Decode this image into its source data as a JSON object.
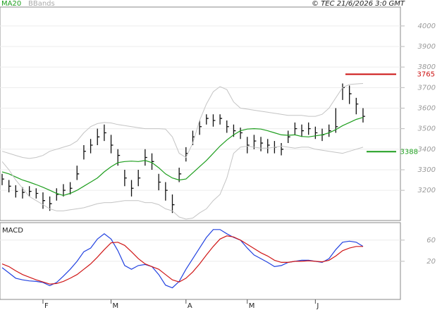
{
  "chart_data": [
    {
      "type": "ohlc",
      "copyright": "© TEC 21/6/2026 3:0 GMT",
      "ylim": [
        3053,
        4092
      ],
      "yticks": [
        3200,
        3300,
        3400,
        3500,
        3600,
        3700,
        3800,
        3900,
        4000
      ],
      "grid": true,
      "bar_color": "#111111",
      "high": [
        3280,
        3250,
        3225,
        3215,
        3220,
        3210,
        3190,
        3170,
        3210,
        3230,
        3240,
        3320,
        3420,
        3450,
        3500,
        3520,
        3470,
        3400,
        3300,
        3250,
        3300,
        3400,
        3380,
        3280,
        3240,
        3180,
        3310,
        3410,
        3490,
        3540,
        3570,
        3570,
        3570,
        3540,
        3520,
        3505,
        3460,
        3470,
        3460,
        3450,
        3440,
        3430,
        3490,
        3530,
        3520,
        3530,
        3510,
        3500,
        3520,
        3600,
        3720,
        3710,
        3650,
        3600
      ],
      "low": [
        3225,
        3190,
        3165,
        3160,
        3170,
        3160,
        3110,
        3100,
        3150,
        3170,
        3180,
        3250,
        3350,
        3380,
        3420,
        3440,
        3380,
        3320,
        3220,
        3170,
        3220,
        3320,
        3300,
        3200,
        3150,
        3090,
        3240,
        3340,
        3420,
        3470,
        3520,
        3510,
        3520,
        3480,
        3460,
        3450,
        3380,
        3400,
        3390,
        3380,
        3380,
        3370,
        3430,
        3470,
        3460,
        3470,
        3450,
        3440,
        3460,
        3480,
        3640,
        3620,
        3570,
        3530
      ],
      "close": [
        3255,
        3220,
        3195,
        3190,
        3195,
        3185,
        3150,
        3135,
        3180,
        3200,
        3210,
        3280,
        3390,
        3420,
        3460,
        3480,
        3420,
        3370,
        3260,
        3210,
        3260,
        3360,
        3340,
        3240,
        3200,
        3130,
        3280,
        3380,
        3460,
        3510,
        3550,
        3540,
        3550,
        3510,
        3490,
        3480,
        3420,
        3440,
        3430,
        3420,
        3410,
        3400,
        3460,
        3500,
        3490,
        3500,
        3480,
        3470,
        3490,
        3510,
        3700,
        3670,
        3620,
        3560
      ],
      "series": [
        {
          "name": "MA20",
          "color": "#1e9e1e",
          "values": [
            3290,
            3280,
            3265,
            3250,
            3240,
            3228,
            3215,
            3200,
            3185,
            3175,
            3185,
            3200,
            3220,
            3240,
            3260,
            3290,
            3315,
            3335,
            3340,
            3342,
            3340,
            3345,
            3335,
            3310,
            3280,
            3260,
            3250,
            3255,
            3285,
            3315,
            3345,
            3380,
            3415,
            3445,
            3470,
            3490,
            3498,
            3500,
            3498,
            3490,
            3480,
            3470,
            3468,
            3470,
            3462,
            3460,
            3465,
            3470,
            3480,
            3495,
            3515,
            3530,
            3545,
            3555
          ]
        },
        {
          "name": "BBands",
          "color": "#c4c4c4",
          "upper": [
            3390,
            3380,
            3370,
            3360,
            3355,
            3360,
            3370,
            3390,
            3400,
            3410,
            3420,
            3440,
            3480,
            3510,
            3525,
            3530,
            3528,
            3520,
            3515,
            3510,
            3505,
            3500,
            3500,
            3500,
            3498,
            3460,
            3380,
            3360,
            3430,
            3540,
            3620,
            3680,
            3705,
            3690,
            3630,
            3600,
            3595,
            3590,
            3585,
            3580,
            3575,
            3570,
            3565,
            3565,
            3565,
            3560,
            3560,
            3570,
            3600,
            3650,
            3700,
            3715,
            3718,
            3720
          ],
          "lower": [
            3340,
            3300,
            3250,
            3210,
            3170,
            3150,
            3130,
            3110,
            3100,
            3100,
            3105,
            3110,
            3115,
            3125,
            3135,
            3140,
            3140,
            3145,
            3150,
            3150,
            3150,
            3140,
            3140,
            3130,
            3110,
            3100,
            3070,
            3060,
            3065,
            3090,
            3110,
            3150,
            3180,
            3260,
            3380,
            3410,
            3415,
            3410,
            3405,
            3405,
            3410,
            3415,
            3410,
            3405,
            3410,
            3410,
            3400,
            3395,
            3390,
            3385,
            3380,
            3390,
            3400,
            3410
          ]
        }
      ],
      "levels": [
        {
          "value": 3765,
          "color": "#cc1111"
        },
        {
          "value": 3388,
          "color": "#1e9e1e"
        }
      ]
    },
    {
      "type": "line",
      "title": "MACD",
      "ylim": [
        -52,
        93
      ],
      "yticks": [
        20,
        60
      ],
      "categories": [
        null,
        null,
        null,
        null,
        null,
        null,
        "F",
        null,
        null,
        null,
        null,
        null,
        null,
        null,
        null,
        null,
        "M",
        null,
        null,
        null,
        null,
        null,
        null,
        null,
        null,
        null,
        null,
        "A",
        null,
        null,
        null,
        null,
        null,
        null,
        null,
        null,
        "M",
        null,
        null,
        null,
        null,
        null,
        null,
        null,
        null,
        null,
        "J",
        null,
        null,
        null,
        null,
        null,
        null,
        null
      ],
      "series": [
        {
          "name": "MACD",
          "color": "#2242e0",
          "values": [
            8,
            -2,
            -12,
            -15,
            -17,
            -18,
            -20,
            -26,
            -20,
            -8,
            5,
            20,
            38,
            45,
            62,
            72,
            62,
            40,
            12,
            5,
            12,
            14,
            10,
            -5,
            -25,
            -30,
            -18,
            5,
            25,
            45,
            65,
            80,
            80,
            72,
            65,
            60,
            45,
            32,
            25,
            18,
            10,
            12,
            18,
            20,
            22,
            22,
            20,
            18,
            25,
            42,
            56,
            58,
            56,
            48
          ]
        },
        {
          "color": "#d01818",
          "values": [
            15,
            10,
            2,
            -5,
            -10,
            -15,
            -19,
            -23,
            -22,
            -18,
            -12,
            -5,
            5,
            15,
            28,
            42,
            55,
            56,
            50,
            38,
            25,
            15,
            10,
            5,
            -5,
            -15,
            -19,
            -12,
            0,
            15,
            32,
            48,
            62,
            68,
            66,
            60,
            52,
            44,
            36,
            30,
            22,
            18,
            18,
            20,
            20,
            21,
            20,
            19,
            22,
            30,
            40,
            45,
            48,
            48
          ]
        }
      ]
    }
  ]
}
